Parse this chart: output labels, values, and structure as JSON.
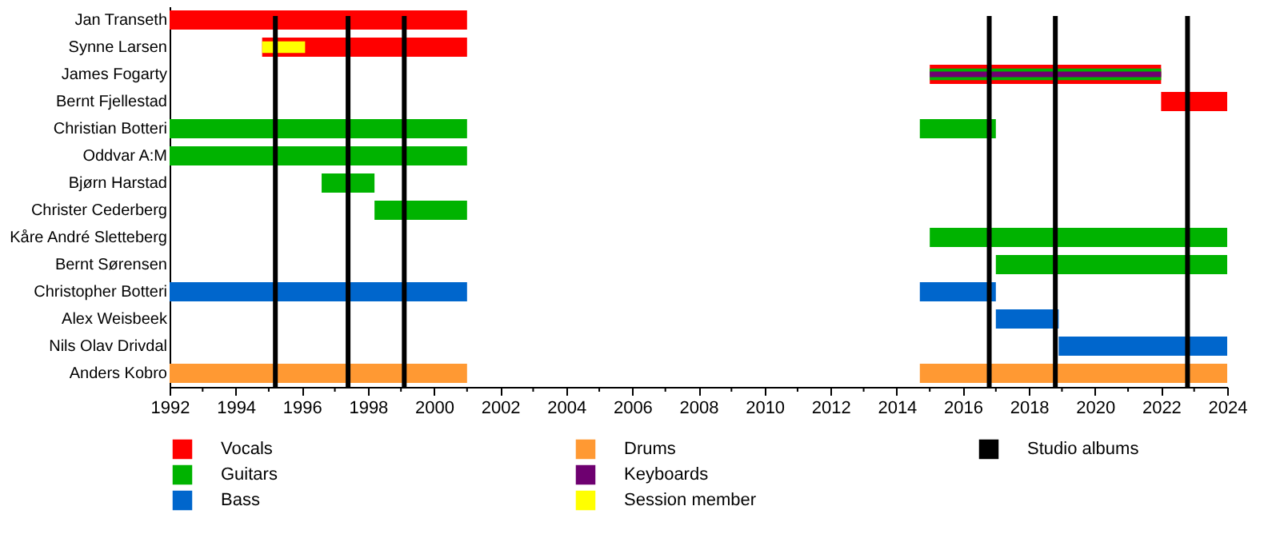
{
  "chart_data": {
    "type": "bar",
    "orientation": "horizontal",
    "categories": [
      "Jan Transeth",
      "Synne Larsen",
      "James Fogarty",
      "Bernt Fjellestad",
      "Christian Botteri",
      "Oddvar A:M",
      "Bjørn Harstad",
      "Christer Cederberg",
      "Kåre André Sletteberg",
      "Bernt Sørensen",
      "Christopher Botteri",
      "Alex Weisbeek",
      "Nils Olav Drivdal",
      "Anders Kobro"
    ],
    "series": [
      {
        "name": "Vocals",
        "color": "#ff0000",
        "base": [
          1992,
          1994.8,
          2015,
          2022,
          null,
          null,
          null,
          null,
          null,
          null,
          null,
          null,
          null,
          null
        ],
        "values": [
          9,
          6.2,
          7,
          2,
          null,
          null,
          null,
          null,
          null,
          null,
          null,
          null,
          null,
          null
        ]
      },
      {
        "name": "Guitars",
        "color": "#00b300",
        "base": [
          null,
          null,
          2015,
          null,
          1992,
          1992,
          1996.6,
          1998.2,
          2015,
          2017,
          null,
          null,
          null,
          null
        ],
        "values": [
          null,
          null,
          7,
          null,
          9,
          9,
          1.6,
          2.8,
          9,
          7,
          null,
          null,
          null,
          null
        ]
      },
      {
        "name": "Bass",
        "color": "#0066cc",
        "base": [
          null,
          null,
          null,
          null,
          null,
          null,
          null,
          null,
          null,
          null,
          1992,
          2017,
          2018.9,
          null
        ],
        "values": [
          null,
          null,
          null,
          null,
          null,
          null,
          null,
          null,
          null,
          null,
          9,
          1.9,
          5.1,
          null
        ]
      },
      {
        "name": "Drums",
        "color": "#ff9933",
        "base": [
          null,
          null,
          null,
          null,
          null,
          null,
          null,
          null,
          null,
          null,
          null,
          null,
          null,
          1992
        ],
        "values": [
          null,
          null,
          null,
          null,
          null,
          null,
          null,
          null,
          null,
          null,
          null,
          null,
          null,
          9
        ]
      },
      {
        "name": "Keyboards",
        "color": "#6e0070",
        "base": [
          null,
          null,
          2015,
          null,
          null,
          null,
          null,
          null,
          null,
          null,
          null,
          null,
          null,
          null
        ],
        "values": [
          null,
          null,
          7,
          null,
          null,
          null,
          null,
          null,
          null,
          null,
          null,
          null,
          null,
          null
        ]
      },
      {
        "name": "Session member",
        "color": "#ffff00",
        "base": [
          null,
          1994.8,
          null,
          null,
          null,
          null,
          null,
          null,
          null,
          null,
          null,
          null,
          null,
          null
        ],
        "values": [
          null,
          1.3,
          null,
          null,
          null,
          null,
          null,
          null,
          null,
          null,
          null,
          null,
          null,
          null
        ]
      },
      {
        "color": "#00b300",
        "base": [
          null,
          null,
          null,
          null,
          2014.7,
          null,
          null,
          null,
          null,
          null,
          null,
          null,
          null,
          null
        ],
        "values": [
          null,
          null,
          null,
          null,
          2.3,
          null,
          null,
          null,
          null,
          null,
          null,
          null,
          null,
          null
        ]
      },
      {
        "color": "#0066cc",
        "base": [
          null,
          null,
          null,
          null,
          null,
          null,
          null,
          null,
          null,
          null,
          2014.7,
          null,
          null,
          null
        ],
        "values": [
          null,
          null,
          null,
          null,
          null,
          null,
          null,
          null,
          null,
          null,
          2.3,
          null,
          null,
          null
        ]
      },
      {
        "color": "#ff9933",
        "base": [
          null,
          null,
          null,
          null,
          null,
          null,
          null,
          null,
          null,
          null,
          null,
          null,
          null,
          2014.7
        ],
        "values": [
          null,
          null,
          null,
          null,
          null,
          null,
          null,
          null,
          null,
          null,
          null,
          null,
          null,
          9.3
        ]
      }
    ],
    "xlim": [
      1992,
      2024
    ],
    "xticks": [
      1992,
      {
        "value": 1993,
        "label": null
      },
      1994,
      {
        "value": 1995,
        "label": null
      },
      1996,
      {
        "value": 1997,
        "label": null
      },
      1998,
      {
        "value": 1999,
        "label": null
      },
      2000,
      {
        "value": 2001,
        "label": null
      },
      2002,
      {
        "value": 2003,
        "label": null
      },
      2004,
      {
        "value": 2005,
        "label": null
      },
      2006,
      {
        "value": 2007,
        "label": null
      },
      2008,
      {
        "value": 2009,
        "label": null
      },
      2010,
      {
        "value": 2011,
        "label": null
      },
      2012,
      {
        "value": 2013,
        "label": null
      },
      2014,
      {
        "value": 2015,
        "label": null
      },
      2016,
      {
        "value": 2017,
        "label": null
      },
      2018,
      {
        "value": 2019,
        "label": null
      },
      2020,
      {
        "value": 2021,
        "label": null
      },
      2022,
      {
        "value": 2023,
        "label": null
      },
      2024
    ],
    "ref_lines": [
      {
        "axis": "x",
        "value": 1995.2,
        "color": "#000000",
        "label": "Studio albums"
      },
      {
        "axis": "x",
        "value": 1997.4,
        "color": "#000000"
      },
      {
        "axis": "x",
        "value": 1999.1,
        "color": "#000000"
      },
      {
        "axis": "x",
        "value": 2016.8,
        "color": "#000000"
      },
      {
        "axis": "x",
        "value": 2018.8,
        "color": "#000000"
      },
      {
        "axis": "x",
        "value": 2022.8,
        "color": "#000000"
      }
    ],
    "grid": false,
    "legend": "bottom"
  }
}
